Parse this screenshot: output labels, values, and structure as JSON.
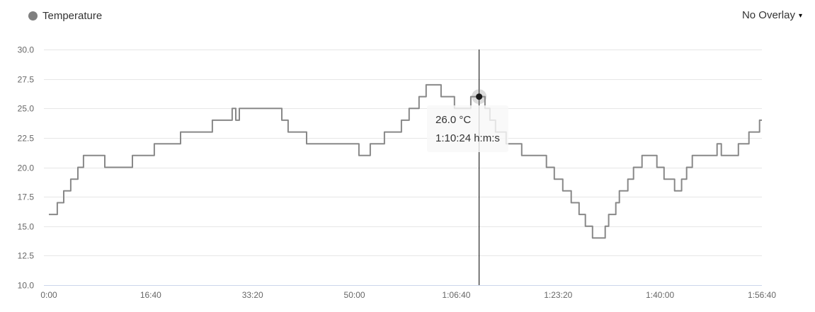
{
  "header": {
    "legend": {
      "label": "Temperature"
    },
    "overlay_dropdown": {
      "label": "No Overlay",
      "caret": "▾"
    }
  },
  "tooltip": {
    "value_line": "26.0 °C",
    "time_line": "1:10:24 h:m:s"
  },
  "chart_data": {
    "type": "line",
    "step": true,
    "title": "",
    "xlabel": "",
    "ylabel": "",
    "ylim": [
      10,
      30
    ],
    "xlim_seconds": [
      0,
      7000
    ],
    "grid": "horizontal-only",
    "legend_position": "top-left",
    "y_ticks": [
      {
        "value": 10,
        "label": "10.0"
      },
      {
        "value": 12.5,
        "label": "12.5"
      },
      {
        "value": 15,
        "label": "15.0"
      },
      {
        "value": 17.5,
        "label": "17.5"
      },
      {
        "value": 20,
        "label": "20.0"
      },
      {
        "value": 22.5,
        "label": "22.5"
      },
      {
        "value": 25,
        "label": "25.0"
      },
      {
        "value": 27.5,
        "label": "27.5"
      },
      {
        "value": 30,
        "label": "30.0"
      }
    ],
    "x_ticks": [
      {
        "seconds": 0,
        "label": "0:00"
      },
      {
        "seconds": 1000,
        "label": "16:40"
      },
      {
        "seconds": 2000,
        "label": "33:20"
      },
      {
        "seconds": 3000,
        "label": "50:00"
      },
      {
        "seconds": 4000,
        "label": "1:06:40"
      },
      {
        "seconds": 5000,
        "label": "1:23:20"
      },
      {
        "seconds": 6000,
        "label": "1:40:00"
      },
      {
        "seconds": 7000,
        "label": "1:56:40"
      }
    ],
    "series": [
      {
        "name": "Temperature",
        "points_seconds_celsius": [
          [
            0,
            16
          ],
          [
            83,
            17
          ],
          [
            146,
            18
          ],
          [
            215,
            19
          ],
          [
            285,
            20
          ],
          [
            340,
            21
          ],
          [
            549,
            20
          ],
          [
            820,
            21
          ],
          [
            1035,
            22
          ],
          [
            1293,
            23
          ],
          [
            1605,
            24
          ],
          [
            1800,
            25
          ],
          [
            1835,
            24
          ],
          [
            1870,
            25
          ],
          [
            2287,
            24
          ],
          [
            2349,
            23
          ],
          [
            2530,
            22
          ],
          [
            3044,
            21
          ],
          [
            3155,
            22
          ],
          [
            3294,
            23
          ],
          [
            3461,
            24
          ],
          [
            3537,
            25
          ],
          [
            3634,
            26
          ],
          [
            3704,
            27
          ],
          [
            3850,
            26
          ],
          [
            3982,
            25
          ],
          [
            4142,
            26
          ],
          [
            4281,
            25
          ],
          [
            4330,
            24
          ],
          [
            4385,
            23
          ],
          [
            4489,
            22
          ],
          [
            4642,
            21
          ],
          [
            4885,
            20
          ],
          [
            4962,
            19
          ],
          [
            5045,
            18
          ],
          [
            5128,
            17
          ],
          [
            5205,
            16
          ],
          [
            5267,
            15
          ],
          [
            5337,
            14
          ],
          [
            5462,
            15
          ],
          [
            5496,
            16
          ],
          [
            5566,
            17
          ],
          [
            5601,
            18
          ],
          [
            5684,
            19
          ],
          [
            5740,
            20
          ],
          [
            5823,
            21
          ],
          [
            5969,
            20
          ],
          [
            6039,
            19
          ],
          [
            6143,
            18
          ],
          [
            6212,
            19
          ],
          [
            6261,
            20
          ],
          [
            6317,
            21
          ],
          [
            6560,
            22
          ],
          [
            6602,
            21
          ],
          [
            6769,
            22
          ],
          [
            6873,
            23
          ],
          [
            6977,
            24
          ]
        ]
      }
    ],
    "cursor": {
      "seconds": 4224,
      "value": 26.0,
      "value_label": "26.0 °C",
      "time_label": "1:10:24 h:m:s"
    }
  },
  "colors": {
    "series_line": "#888888",
    "legend_symbol": "#7f7f7f",
    "grid_line": "#e6e6e6",
    "axis_line": "#ccd6eb",
    "axis_label": "#666666",
    "crosshair": "#000000",
    "marker_fill": "#1a1a1a",
    "marker_halo": "rgba(140,140,140,0.3)"
  }
}
